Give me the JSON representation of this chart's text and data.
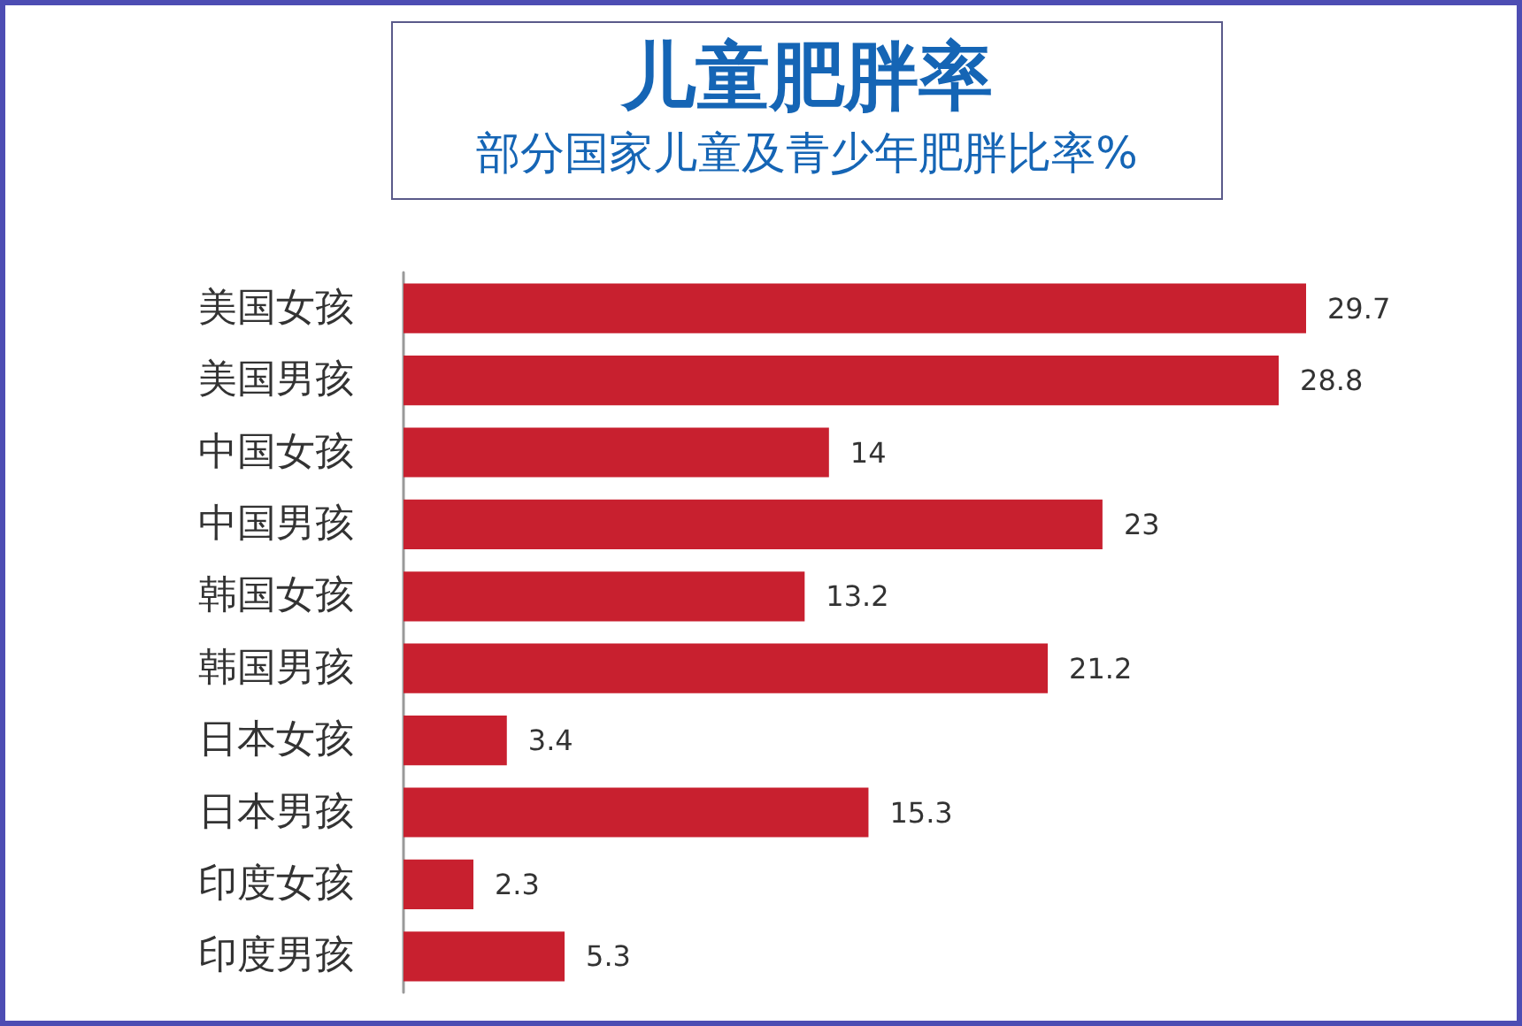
{
  "chart_data": {
    "type": "bar",
    "orientation": "horizontal",
    "title": "儿童肥胖率",
    "subtitle": "部分国家儿童及青少年肥胖比率%",
    "categories": [
      "美国女孩",
      "美国男孩",
      "中国女孩",
      "中国男孩",
      "韩国女孩",
      "韩国男孩",
      "日本女孩",
      "日本男孩",
      "印度女孩",
      "印度男孩"
    ],
    "values": [
      29.7,
      28.8,
      14,
      23,
      13.2,
      21.2,
      3.4,
      15.3,
      2.3,
      5.3
    ],
    "color": "#c8202f",
    "data_labels": true
  }
}
